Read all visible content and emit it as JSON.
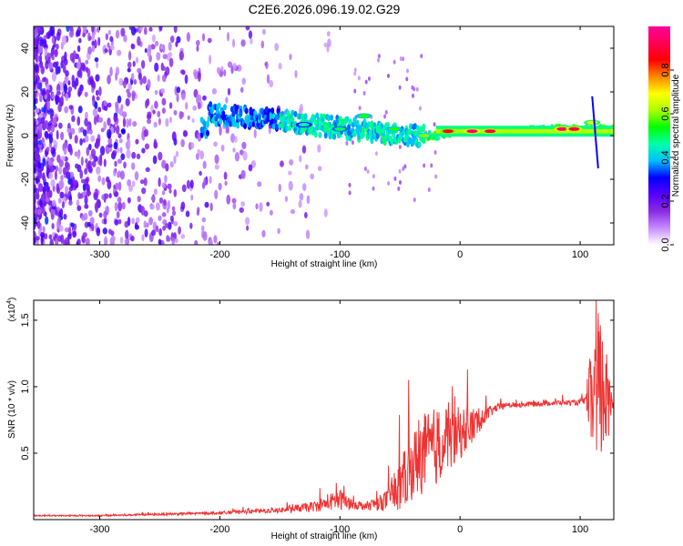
{
  "title": "C2E6.2026.096.19.02.G29",
  "chart_data": [
    {
      "type": "heatmap",
      "xlabel": "Height of straight line (km)",
      "ylabel": "Frequency (Hz)",
      "xlim": [
        -355,
        128
      ],
      "ylim": [
        -50,
        50
      ],
      "xticks": [
        -300,
        -200,
        -100,
        0,
        100
      ],
      "yticks": [
        -40,
        -20,
        0,
        20,
        40
      ],
      "colorbar": {
        "label": "Normalized spectral amplitude",
        "range": [
          0.0,
          1.0
        ],
        "ticks": [
          "0.0",
          "0.2",
          "0.4",
          "0.6",
          "0.8"
        ],
        "tick_values": [
          0.0,
          0.2,
          0.4,
          0.6,
          0.8
        ],
        "colors": [
          "#ffffff",
          "#c58bff",
          "#8a2be2",
          "#5500ff",
          "#0000ff",
          "#00bfff",
          "#00ffaa",
          "#00ff00",
          "#aaff00",
          "#ffff00",
          "#ff8800",
          "#ff0000",
          "#ff0055",
          "#ff0099"
        ]
      },
      "ridge": [
        {
          "x": -210,
          "y": 10
        },
        {
          "x": -150,
          "y": 7
        },
        {
          "x": -120,
          "y": 5
        },
        {
          "x": -80,
          "y": 2
        },
        {
          "x": -40,
          "y": 0
        },
        {
          "x": -20,
          "y": 0
        },
        {
          "x": 0,
          "y": 2
        },
        {
          "x": 40,
          "y": 2
        },
        {
          "x": 80,
          "y": 3
        },
        {
          "x": 100,
          "y": 3
        },
        {
          "x": 128,
          "y": 3
        }
      ],
      "hotspots": [
        {
          "x": -130,
          "y": 5,
          "v": 0.45
        },
        {
          "x": -100,
          "y": 3,
          "v": 0.5
        },
        {
          "x": -80,
          "y": 9,
          "v": 0.55
        },
        {
          "x": -55,
          "y": 3,
          "v": 0.55
        },
        {
          "x": -30,
          "y": 0,
          "v": 0.6
        },
        {
          "x": -10,
          "y": 2,
          "v": 0.85
        },
        {
          "x": 10,
          "y": 2,
          "v": 0.95
        },
        {
          "x": 25,
          "y": 2,
          "v": 0.9
        },
        {
          "x": 85,
          "y": 3,
          "v": 0.95
        },
        {
          "x": 95,
          "y": 3,
          "v": 0.9
        },
        {
          "x": 110,
          "y": 6,
          "v": 0.7
        }
      ]
    },
    {
      "type": "line",
      "xlabel": "Height of straight line (km)",
      "ylabel": "SNR (10 * v/v)",
      "yscale_label": "(x10",
      "yscale_exp": "4",
      "yscale_close": ")",
      "xlim": [
        -355,
        128
      ],
      "ylim": [
        0,
        1.65
      ],
      "xticks": [
        -300,
        -200,
        -100,
        0,
        100
      ],
      "yticks": [
        "0.5",
        "1.0",
        "1.5"
      ],
      "ytick_values": [
        0.5,
        1.0,
        1.5
      ],
      "series": [
        {
          "color": "#ee3333",
          "x": [
            -355,
            -300,
            -250,
            -200,
            -150,
            -120,
            -100,
            -90,
            -80,
            -70,
            -60,
            -50,
            -40,
            -30,
            -20,
            -10,
            0,
            10,
            20,
            30,
            40,
            60,
            80,
            100,
            105,
            110,
            115,
            120,
            128
          ],
          "y": [
            0.03,
            0.03,
            0.04,
            0.05,
            0.07,
            0.1,
            0.15,
            0.12,
            0.1,
            0.12,
            0.15,
            0.25,
            0.4,
            0.5,
            0.55,
            0.6,
            0.65,
            0.7,
            0.78,
            0.84,
            0.86,
            0.87,
            0.88,
            0.88,
            0.9,
            0.9,
            1.0,
            0.9,
            0.88
          ],
          "noise": [
            0.005,
            0.005,
            0.008,
            0.01,
            0.02,
            0.04,
            0.08,
            0.04,
            0.03,
            0.05,
            0.08,
            0.2,
            0.25,
            0.3,
            0.3,
            0.25,
            0.2,
            0.15,
            0.06,
            0.03,
            0.02,
            0.02,
            0.02,
            0.02,
            0.03,
            0.5,
            0.6,
            0.5,
            0.02
          ]
        }
      ]
    }
  ]
}
